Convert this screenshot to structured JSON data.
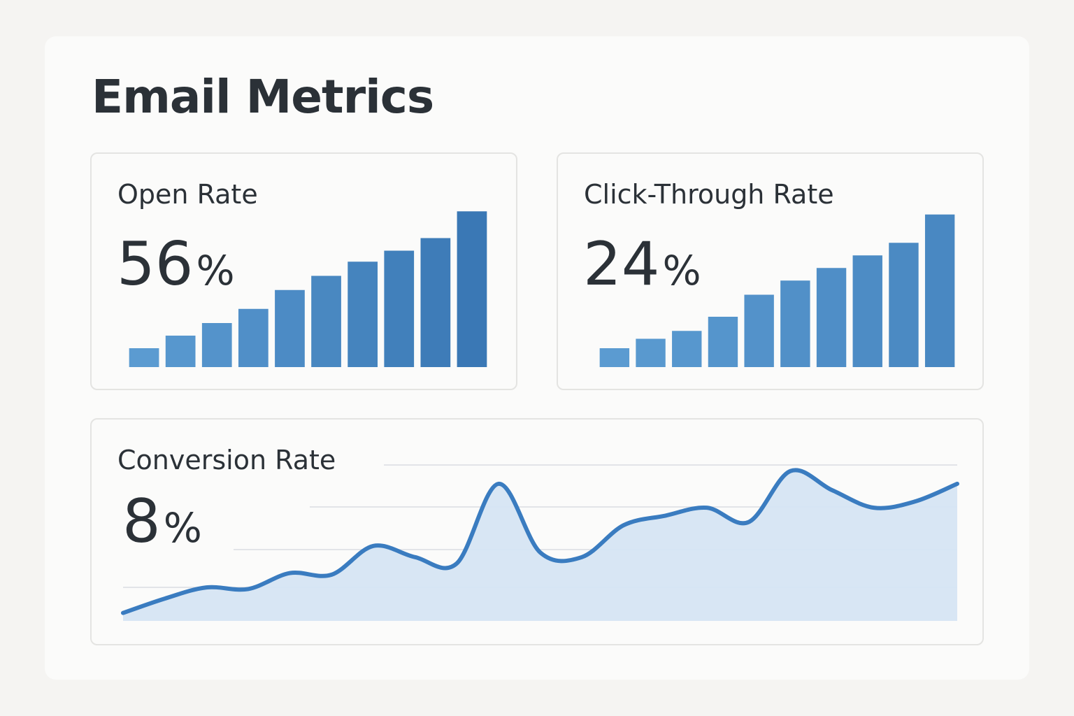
{
  "page": {
    "title": "Email Metrics"
  },
  "colors": {
    "bar_light": "#5b9bd1",
    "bar_dark": "#3a78b5",
    "line": "#3a7cc0",
    "area": "#d6e5f3",
    "grid": "#d9dde2"
  },
  "cards": {
    "open_rate": {
      "title": "Open Rate",
      "value": "56",
      "unit": "%"
    },
    "click_through_rate": {
      "title": "Click-Through Rate",
      "value": "24",
      "unit": "%"
    },
    "conversion_rate": {
      "title": "Conversion Rate",
      "value": "8",
      "unit": "%"
    }
  },
  "chart_data": [
    {
      "type": "bar",
      "values": [
        12,
        20,
        28,
        37,
        49,
        58,
        67,
        74,
        82,
        99
      ],
      "ylim": [
        0,
        100
      ],
      "grid": false
    },
    {
      "type": "bar",
      "values": [
        12,
        18,
        23,
        32,
        46,
        55,
        63,
        71,
        79,
        97
      ],
      "ylim": [
        0,
        100
      ],
      "grid": false
    },
    {
      "type": "area",
      "x": [
        0,
        5,
        10,
        15,
        20,
        25,
        30,
        35,
        40,
        45,
        50,
        55,
        60,
        65,
        70,
        75,
        80,
        85,
        90,
        95,
        100
      ],
      "values": [
        5,
        14,
        21,
        20,
        30,
        29,
        47,
        40,
        36,
        86,
        43,
        40,
        60,
        66,
        71,
        62,
        94,
        82,
        71,
        75,
        86
      ],
      "ylim": [
        0,
        100
      ],
      "grid": true
    }
  ]
}
